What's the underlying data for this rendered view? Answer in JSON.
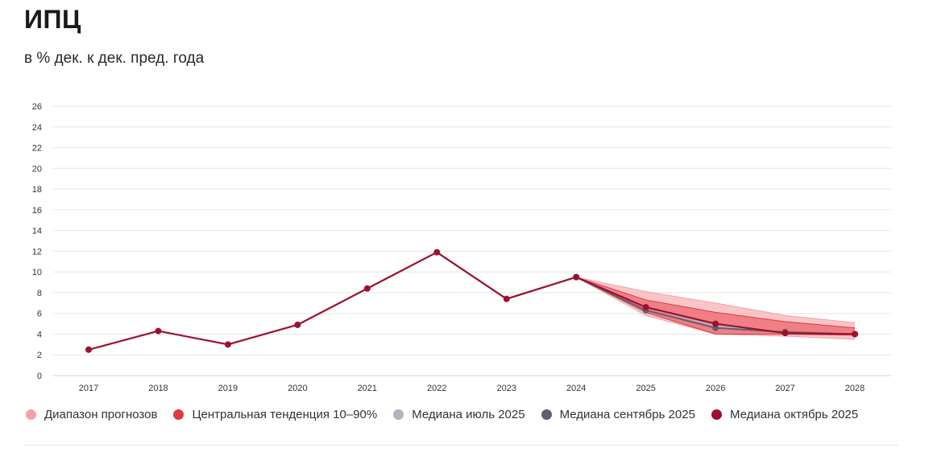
{
  "header": {
    "title": "ИПЦ",
    "subtitle": "в % дек. к дек. пред. года"
  },
  "colors": {
    "range": "#f6a1a6",
    "central": "#e0393f",
    "july": "#b1b5c0",
    "september": "#5d6275",
    "october": "#9d0f2f",
    "grid": "#e5e5e5"
  },
  "legend": [
    {
      "key": "range",
      "label": "Диапазон прогнозов"
    },
    {
      "key": "central",
      "label": "Центральная тенденция 10–90%"
    },
    {
      "key": "july",
      "label": "Медиана июль 2025"
    },
    {
      "key": "september",
      "label": "Медиана сентябрь 2025"
    },
    {
      "key": "october",
      "label": "Медиана октябрь 2025"
    }
  ],
  "chart_data": {
    "type": "line",
    "title": "ИПЦ",
    "subtitle": "в % дек. к дек. пред. года",
    "categories": [
      "2017",
      "2018",
      "2019",
      "2020",
      "2021",
      "2022",
      "2023",
      "2024",
      "2025",
      "2026",
      "2027",
      "2028"
    ],
    "ylim": [
      0,
      26
    ],
    "yticks": [
      0,
      2,
      4,
      6,
      8,
      10,
      12,
      14,
      16,
      18,
      20,
      22,
      24,
      26
    ],
    "grid": true,
    "bands": [
      {
        "name": "Диапазон прогнозов",
        "key": "range",
        "x": [
          "2024",
          "2025",
          "2026",
          "2027",
          "2028"
        ],
        "low": [
          9.5,
          5.8,
          4.0,
          3.8,
          3.5
        ],
        "high": [
          9.5,
          8.1,
          7.0,
          5.8,
          5.1
        ]
      },
      {
        "name": "Центральная тенденция 10–90%",
        "key": "central",
        "x": [
          "2024",
          "2025",
          "2026",
          "2027",
          "2028"
        ],
        "low": [
          9.5,
          6.1,
          4.0,
          4.0,
          3.9
        ],
        "high": [
          9.5,
          7.3,
          6.1,
          5.2,
          4.6
        ]
      }
    ],
    "series": [
      {
        "name": "Медиана июль 2025",
        "key": "july",
        "x": [
          "2024",
          "2025",
          "2026",
          "2027",
          "2028"
        ],
        "values": [
          9.5,
          6.6,
          4.8,
          4.2,
          4.0
        ]
      },
      {
        "name": "Медиана сентябрь 2025",
        "key": "september",
        "x": [
          "2024",
          "2025",
          "2026",
          "2027",
          "2028"
        ],
        "values": [
          9.5,
          6.3,
          4.6,
          4.2,
          4.0
        ]
      },
      {
        "name": "Медиана октябрь 2025",
        "key": "october",
        "x": [
          "2017",
          "2018",
          "2019",
          "2020",
          "2021",
          "2022",
          "2023",
          "2024",
          "2025",
          "2026",
          "2027",
          "2028"
        ],
        "values": [
          2.5,
          4.3,
          3.0,
          4.9,
          8.4,
          11.9,
          7.4,
          9.5,
          6.6,
          5.0,
          4.1,
          4.0
        ]
      }
    ]
  }
}
